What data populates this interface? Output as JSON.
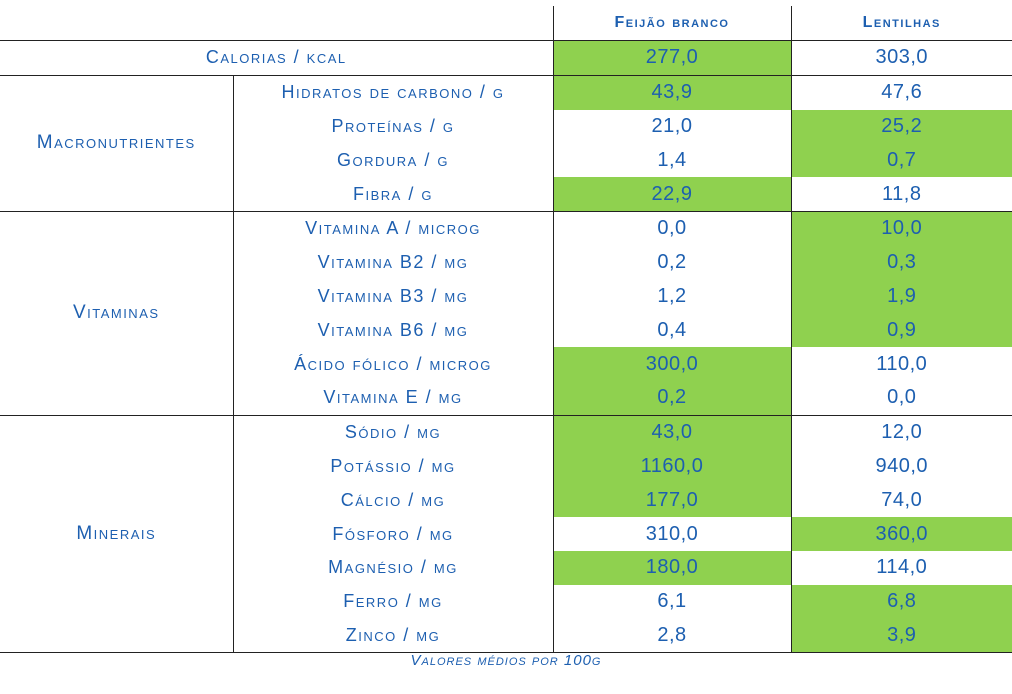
{
  "headers": {
    "col_feijao": "Feijão branco",
    "col_lentilhas": "Lentilhas"
  },
  "highlight_color": "#8fd14f",
  "text_color": "#1d5fb0",
  "calorias": {
    "label": "Calorias / kcal",
    "feijao": "277,0",
    "lentilhas": "303,0",
    "highlight": "feijao"
  },
  "groups": [
    {
      "name": "Macronutrientes",
      "rows": [
        {
          "label": "Hidratos de carbono / g",
          "feijao": "43,9",
          "lentilhas": "47,6",
          "highlight": "feijao"
        },
        {
          "label": "Proteínas / g",
          "feijao": "21,0",
          "lentilhas": "25,2",
          "highlight": "lentilhas"
        },
        {
          "label": "Gordura / g",
          "feijao": "1,4",
          "lentilhas": "0,7",
          "highlight": "lentilhas"
        },
        {
          "label": "Fibra / g",
          "feijao": "22,9",
          "lentilhas": "11,8",
          "highlight": "feijao"
        }
      ]
    },
    {
      "name": "Vitaminas",
      "rows": [
        {
          "label": "Vitamina A / microg",
          "feijao": "0,0",
          "lentilhas": "10,0",
          "highlight": "lentilhas"
        },
        {
          "label": "Vitamina B2 / mg",
          "feijao": "0,2",
          "lentilhas": "0,3",
          "highlight": "lentilhas"
        },
        {
          "label": "Vitamina B3 / mg",
          "feijao": "1,2",
          "lentilhas": "1,9",
          "highlight": "lentilhas"
        },
        {
          "label": "Vitamina B6 / mg",
          "feijao": "0,4",
          "lentilhas": "0,9",
          "highlight": "lentilhas"
        },
        {
          "label": "Ácido fólico / microg",
          "feijao": "300,0",
          "lentilhas": "110,0",
          "highlight": "feijao"
        },
        {
          "label": "Vitamina E / mg",
          "feijao": "0,2",
          "lentilhas": "0,0",
          "highlight": "feijao"
        }
      ]
    },
    {
      "name": "Minerais",
      "rows": [
        {
          "label": "Sódio / mg",
          "feijao": "43,0",
          "lentilhas": "12,0",
          "highlight": "feijao"
        },
        {
          "label": "Potássio / mg",
          "feijao": "1160,0",
          "lentilhas": "940,0",
          "highlight": "feijao"
        },
        {
          "label": "Cálcio / mg",
          "feijao": "177,0",
          "lentilhas": "74,0",
          "highlight": "feijao"
        },
        {
          "label": "Fósforo / mg",
          "feijao": "310,0",
          "lentilhas": "360,0",
          "highlight": "lentilhas"
        },
        {
          "label": "Magnésio / mg",
          "feijao": "180,0",
          "lentilhas": "114,0",
          "highlight": "feijao"
        },
        {
          "label": "Ferro / mg",
          "feijao": "6,1",
          "lentilhas": "6,8",
          "highlight": "lentilhas"
        },
        {
          "label": "Zinco / mg",
          "feijao": "2,8",
          "lentilhas": "3,9",
          "highlight": "lentilhas"
        }
      ]
    }
  ],
  "footer": "Valores médios por 100g"
}
